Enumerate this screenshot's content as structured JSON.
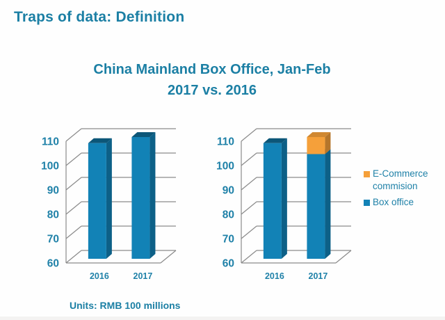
{
  "page": {
    "title": "Traps of data: Definition",
    "accent_text_color": "#1b7fa4",
    "background_color": "#fefefe"
  },
  "chart_heading": {
    "line1": "China Mainland Box Office, Jan-Feb",
    "line2": "2017 vs. 2016"
  },
  "footer": {
    "units_note": "Units: RMB 100 millions"
  },
  "chart_data": {
    "title": "China Mainland Box Office, Jan-Feb 2017 vs. 2016",
    "type": "bar",
    "categories": [
      "2016",
      "2017"
    ],
    "y_ticks": [
      60,
      70,
      80,
      90,
      100,
      110
    ],
    "ylim": [
      60,
      110
    ],
    "grid": true,
    "tick_label_color": "#1f81a8",
    "grid_color": "#8a8a8a",
    "charts": [
      {
        "name": "total-box-office",
        "variant": "3d-column",
        "series": [
          {
            "name": "Box office",
            "color": "#1282b6",
            "values": [
              107.5,
              110
            ]
          }
        ]
      },
      {
        "name": "box-office-decomposed",
        "variant": "3d-stacked-column",
        "series": [
          {
            "name": "Box office",
            "color": "#1282b6",
            "values": [
              107.5,
              103
            ]
          },
          {
            "name": "E-Commerce commision",
            "color": "#f5a03a",
            "stacking": "increment",
            "values": [
              0,
              7
            ]
          }
        ],
        "legend": {
          "position": "right",
          "entries": [
            {
              "label": "E-Commerce commision",
              "color": "#f5a03a"
            },
            {
              "label": "Box office",
              "color": "#1282b6"
            }
          ]
        }
      }
    ]
  }
}
